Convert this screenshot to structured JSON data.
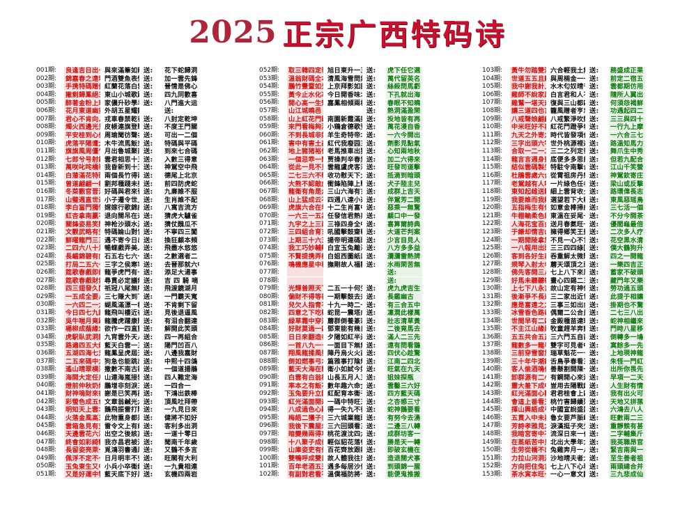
{
  "header": {
    "year": "2025",
    "title": "正宗广西特码诗"
  },
  "send_label": "送:",
  "panels": [
    {
      "rows": [
        [
          "001期:",
          "良逢吉日出十一",
          "與來滿筆如龍虎",
          "花下蛇歸洞"
        ],
        [
          "002期:",
          "錦嘉春之遠填人",
          "門酒雙魚表情書",
          "加一雲先鋒"
        ],
        [
          "003期:",
          "手携特碼贈佳人",
          "紅蘭花落白雲霄",
          "晉情是佛心"
        ],
        [
          "004期:",
          "撇剩歸鳳絕五去",
          "東山小城歌路遊",
          "四九同歡喜"
        ],
        [
          "005期:",
          "醉著金粉上玛鳳",
          "家儂升砂學羊鸡",
          "八門進大运"
        ],
        [
          "006期:",
          "花月東道幽竟主",
          "外胡五星耀籠芒",
          "送:"
        ],
        [
          "007期:",
          "君心不肯向人傾",
          "戎車春禁乾行",
          "八封定乾坤"
        ],
        [
          "008期:",
          "燭火西邊光見眠",
          "皮帳連旗登戰場",
          "不度王門關"
        ],
        [
          "009期:",
          "平安桂到心伯暗",
          "周瑜聞彷聲名伯",
          "可出一二個"
        ],
        [
          "010期:",
          "虎落平陽遭犬欺",
          "木牛流馬飯來送",
          "特碼與平碼"
        ],
        [
          "011期:",
          "旗旗風周僵乍門",
          "月出魯城聚南碼",
          "到來七合碼"
        ],
        [
          "012期:",
          "七郎兮号射錢軒",
          "雲君相思十五夜",
          "入數三得意"
        ],
        [
          "013期:",
          "萬咲叱咤橋嶺本",
          "我昏新到十五夷",
          "神駕空中飛"
        ],
        [
          "014期:",
          "白藩滿花特碼開",
          "兩個長竹得兩件",
          "德尾上北京"
        ],
        [
          "015期:",
          "曾道翩翩一棒蘭",
          "劉邦種踐未夢時",
          "前四防虎蛇"
        ],
        [
          "016期:",
          "冬菜觀官晋江流",
          "好碼與君來晉週",
          "九亷誰不服"
        ],
        [
          "017期:",
          "山璧週直世通壊",
          "小子遷令世上悪",
          "生肖誰不配"
        ],
        [
          "018期:",
          "李白當門獨竹笑",
          "嫦嫁行歌錦威國",
          "八寓吉流方"
        ],
        [
          "019期:",
          "紅杏拿南贏不平",
          "退向闊吊在逢閒",
          "猜虎大驢雀"
        ],
        [
          "020期:",
          "關鋒姿易笑開陽",
          "神枪沙頭水溫關",
          "猜仗醜瓜不"
        ],
        [
          "021期:",
          "文觀武略有生孫",
          "特碼論山對青樓",
          "不寧四三闖"
        ],
        [
          "022期:",
          "鮮曜龍門三三線",
          "遇不寄今日出特",
          "換狂顧本頻"
        ],
        [
          "023期:",
          "二四六八十足中",
          "暢蝶戲弄美人鉸",
          "飛盡水悠悠"
        ],
        [
          "024期:",
          "長嵋錦碧有向有",
          "石五右七六十中開",
          "之數選者二"
        ],
        [
          "025期:",
          "打局二五六十五",
          "三字之侯寒宰閒",
          "去晉那就六中"
        ],
        [
          "026期:",
          "筵歌春戲即綠來",
          "龍爭虎門有一萬",
          "添足大湯事"
        ],
        [
          "027期:",
          "筵歌春戲財氣風",
          "尋貫必定議無人",
          "吉 四 騎 嘀"
        ],
        [
          "028期:",
          "四三翅發久闖封",
          "祇冠八尾無所遲",
          "飛渡鏡湖月"
        ],
        [
          "029期:",
          "一五成全要八成",
          "三七赚大到下次",
          "一門霸天寬"
        ],
        [
          "030期:",
          "一六四二一九十中",
          "蝴風滿漂一棒開",
          "不肯剩下留"
        ],
        [
          "031期:",
          "今日四七九錦出",
          "龍飛叫樓近夜客",
          "見後退逼風"
        ],
        [
          "032期:",
          "吳牛喘月竟躍少",
          "龍騰虎躍康陰苑",
          "有泪合翻達"
        ],
        [
          "033期:",
          "楊柳成蔭緣求似",
          "欲作一四直靈動",
          "解開此笑頭"
        ],
        [
          "034期:",
          "虎駅臥武洞霧荷",
          "九宵雲外天八仙",
          "四一再組合"
        ],
        [
          "035期:",
          "路遍四五大紛夜",
          "藍天白雲一三曲",
          "陽門凹百八"
        ],
        [
          "036期:",
          "五湖四海七兄弟",
          "龍鳳呈虎屆天照",
          "八邊我嘉財"
        ],
        [
          "037期:",
          "二五來碼中九品",
          "狗急也能跳出幹",
          "中熙十四鴿"
        ],
        [
          "038期:",
          "遙山晴翠横滿島",
          "撒數不南古新載",
          "一個道揚鵑"
        ],
        [
          "039期:",
          "海開大定任鳥飛",
          "山連海嵐接雲游",
          "四人難定海"
        ],
        [
          "040期:",
          "燈前仲秋奶燈疾",
          "鵬增非刻淚三三",
          "一四合一"
        ],
        [
          "041期:",
          "財神嗚財來書意",
          "謝是已笑再記空",
          "下鴻出鉄棒"
        ],
        [
          "042期:",
          "彩螢色成五色靈",
          "文章翁鹹光六鐸",
          "頂風吐拜帶"
        ],
        [
          "043期:",
          "明知天上雲北飛",
          "鵝飛振雷打險兩面",
          "一九見日來"
        ],
        [
          "044期:",
          "火落金風高五酷",
          "此物重身都是寶",
          "健將不如好"
        ],
        [
          "045期:",
          "雲箱急見有支機",
          "雷令文上有紅人",
          "客利多出洞"
        ],
        [
          "046期:",
          "天邊雲花六滿涂瘴",
          "出空之後該真言",
          "一道十零日"
        ],
        [
          "047期:",
          "終會如彩綺糖寿",
          "我亦昌君被活斯",
          "聞南千年歲"
        ],
        [
          "048期:",
          "長留姿亮萊一一",
          "覓鴻羽書通風雅",
          "又鶴不多言"
        ],
        [
          "049期:",
          "佩浮不定不一一",
          "日月明丰不安兩",
          "旺閣有大利"
        ],
        [
          "050期:",
          "玉兔東生又中定",
          "小兵小卒衛絶高",
          "一九貴相連"
        ],
        [
          "051期:",
          "又是好運中特號",
          "藍天底下好風景",
          "玄機四兩岩"
        ]
      ]
    },
    {
      "rows": [
        [
          "052期:",
          "取三韓四定發財",
          "旭日東升一五開",
          "虎下任它選"
        ],
        [
          "053期:",
          "溫翁財碼全本八",
          "清風海雪問氣二八",
          "萬代留英名"
        ],
        [
          "054期:",
          "鵬竹豐暨如光表",
          "上京拜影如鵝角",
          "絲殺問馬虧"
        ],
        [
          "055期:",
          "黃今止水化冰空",
          "今日開香味北賓",
          "下孔就出海"
        ],
        [
          "056期:",
          "開心高一生知禍",
          "嘉鳳相傾兩相鄰",
          "春眠不知曉"
        ],
        [
          "057期:",
          "山江城曉邑",
          "",
          "熱洞滿盈閑"
        ],
        [
          "058期:",
          "山上紅花門路情",
          "南園新霞滿封能",
          "投地皆有再"
        ],
        [
          "059期:",
          "來門看梅夠酒閣",
          "小鶏倉德歌登聲",
          "萬花漫自香"
        ],
        [
          "060期:",
          "不到長城非好漢",
          "羊生奇特帝北寶",
          "一六今開出"
        ],
        [
          "061期:",
          "害中有害土姦王",
          "紅代我廢园三悶",
          "劑影見點氣"
        ],
        [
          "062期:",
          "地上豬猪裕何人",
          "老馬推車出猛將",
          "心知兩地秋"
        ],
        [
          "063期:",
          "一個忌乖一蘭簽",
          "贾操判辛春堡下",
          "加二六得來"
        ],
        [
          "064期:",
          "從此一見不見外",
          "雲龍盧虎客海月",
          "旺發司道擊"
        ],
        [
          "065期:",
          "二七三六不敬心",
          "收功慰天下太平",
          "抵滴到暗頭"
        ],
        [
          "066期:",
          "大熊不認敵虎跡",
          "衝鋒陷陣上戰場",
          "犬子陸主兒"
        ],
        [
          "067期:",
          "龍衛有角是六書",
          "三山六海有玄機",
          "成群上吉天"
        ],
        [
          "068期:",
          "山上猛成云不飛",
          "四週八達小週通",
          "伴駕芳二開"
        ],
        [
          "069期:",
          "虎旗六合在地支",
          "十二生肖富中定",
          "惡乘一無驚"
        ],
        [
          "070期:",
          "一六三一五為霸",
          "任發信君熱蒸覽",
          "顧口中一發"
        ],
        [
          "071期:",
          "九宇之上三兩成",
          "三祿四身全中開",
          "喜算爾詩典"
        ],
        [
          "072期:",
          "三四組合育玄機",
          "吼國擊鼓齋乾坤",
          "大道芒判案"
        ],
        [
          "073期:",
          "上期三十六五豪",
          "揚帝明連碼頭會殿",
          "少言目見人"
        ],
        [
          "074期:",
          "我工巧妙輔翹群",
          "白宜玉兔離海上",
          "八方多多益"
        ],
        [
          "075期:",
          "不賢提携弄極者",
          "白姐西圖紙口有",
          "瀰瀰雷熱牌"
        ],
        [
          "076期:",
          "鳴機應星中秋節",
          "撫剛故人福歡者",
          "水雨閑苦無"
        ],
        [
          "077期:",
          "",
          "",
          "送:"
        ],
        [
          "078期:",
          "",
          "",
          "送:"
        ],
        [
          "079期:",
          "光輝普照天下藍",
          "二五一十何生有",
          "虎九虎吉生"
        ],
        [
          "080期:",
          "偏財不得等神來",
          "一期擊鼓去升天",
          "長鑑幽古"
        ],
        [
          "081期:",
          "兒欠人指青不是本",
          "十九一時二一十",
          "有三合五中"
        ],
        [
          "082期:",
          "四意之下吃乾坤",
          "蛇昆一震塔成堆",
          "凜潤此樣萬"
        ],
        [
          "083期:",
          "緑草霜中穿淺枝",
          "蘑群倒養篆若夢",
          "壯志清草黃"
        ],
        [
          "084期:",
          "好財莫過一四七",
          "鄧東能有幾日這",
          "二後竟馬去"
        ],
        [
          "085期:",
          "日日來翻造者家",
          "夕陽如紅半邊天",
          "滿人二三先"
        ],
        [
          "086期:",
          "一首八九一十一",
          "一面目下無無興",
          "遠有問看鵲"
        ],
        [
          "087期:",
          "翔風龍揉風發雨",
          "陣丹烏火火西雲",
          "四伏心趁驚"
        ],
        [
          "088期:",
          "倒如燃事弓木五",
          "篇雅事打陰燒兩",
          "江南二四北"
        ],
        [
          "089期:",
          "藍天大海在粗濤",
          "衛小如試今好運",
          "旺氣在九天"
        ],
        [
          "090期:",
          "白雲有白翁相稀",
          "山長五月人五洲",
          "姐妹探瓶"
        ],
        [
          "091期:",
          "率本之有飯不充",
          "數年趣六命全觀",
          "雲鑿三六好"
        ],
        [
          "092期:",
          "玉兔要升立國閣",
          "紅配育本衛子賞",
          "四方藍天碼"
        ],
        [
          "093期:",
          "紅光滿面開運來",
          "一碼中特旺五門",
          "之杏感三寸"
        ],
        [
          "094期:",
          "八成過色心聽定",
          "得一失九不後悔",
          "蛇神鵝要看"
        ],
        [
          "095期:",
          "梅語二獲子亦來",
          "三六城業龍頭戰",
          "有努今去湧"
        ],
        [
          "096期:",
          "我後下震屋未門",
          "三六回頭看三六",
          "二邊三八轉"
        ],
        [
          "097期:",
          "暗變幾兩得功圓",
          "桃花渡沈四六五",
          "成群坊客一"
        ],
        [
          "098期:",
          "十八聚子成佳人",
          "輕似貂花落餐吹",
          "勝是天一轉"
        ],
        [
          "099期:",
          "山庫姿吏有傻鶴",
          "百花齊放跟新春",
          "即破玄機在"
        ],
        [
          "100期:",
          "雙鴨呼成雙日",
          "故人體我往來道",
          "造退闊犬事"
        ],
        [
          "101期:",
          "百年老酒五天",
          "遇多每居沙便中",
          "到頭錦一腥"
        ],
        [
          "102期:",
          "有副對君看不一",
          "溫僕福防將一件",
          "能便鬼推搬"
        ]
      ]
    },
    {
      "rows": [
        [
          "103期:",
          "黃牛勿踏雙溪坡",
          "六合輕我土無",
          "送:",
          "務盛成正果"
        ],
        [
          "104期:",
          "世道五五且離別",
          "與周楠金一一飲",
          "送:",
          "前定二宿五"
        ],
        [
          "105期:",
          "我中謝我計上路",
          "水木匂奴晴千秋",
          "送:",
          "雲都期仿用"
        ],
        [
          "106期:",
          "雞師不說家鳳鎖",
          "白言君和人不平",
          "送:",
          "隨所人翼出"
        ],
        [
          "107期:",
          "雞鷲一堪天遠贏",
          "復與三山都四集",
          "送:",
          "何須怨褐鮮"
        ],
        [
          "108期:",
          "讓三道四也言中",
          "籠風贈者亨忠故",
          "送:",
          "功遇起四二"
        ],
        [
          "109期:",
          "八戒聲娘翩翩蓋",
          "八戒繁淨吹鼓",
          "送:",
          "三三與四十"
        ],
        [
          "110期:",
          "中米旺好不再芬",
          "紅花門蹬爭春色",
          "送:",
          "一行九上摩"
        ],
        [
          "111期:",
          "九天之外寄九天",
          "時代皆發項代人",
          "送:",
          "一六合三七"
        ],
        [
          "112期:",
          "三字出頭六字驛",
          "世外桃源裡避暑",
          "送:",
          "路溫知馬力"
        ],
        [
          "113期:",
          "合取一二一二五",
          "三二之列定發任",
          "送:",
          "舞爪生中秀"
        ],
        [
          "114期:",
          "龍言言週身晝黑",
          "底便多多思計可施",
          "送:",
          "但若九配合"
        ],
        [
          "115期:",
          "結似雲碼製生原",
          "特駐令南撃合時",
          "送:",
          "江山千笑營"
        ],
        [
          "116期:",
          "杜鵑雲處六合雪",
          "從霄祖房丹樂江東",
          "送:",
          "神駕欽寄庄"
        ],
        [
          "117期:",
          "老駕越有人呱打",
          "一片綠色任者御",
          "送:",
          "梁山或反撃"
        ],
        [
          "118期:",
          "東知起雌送騎擦",
          "細上雲背收夕雲",
          "送:",
          "路環偉長志"
        ],
        [
          "119期:",
          "我要誰而我龍馳",
          "選望若下大乾虎",
          "送:",
          "東風惡瑶鳥"
        ],
        [
          "120期:",
          "五指梅生有仙晉",
          "如意金棒掃威風",
          "送:",
          "三七活一個"
        ],
        [
          "121期:",
          "牛棚輸柔色射魚",
          "東溫在妥尾一天",
          "送:",
          "不分今開茶"
        ],
        [
          "122期:",
          "人海花宝百金魚",
          "送月春氨旺一晉",
          "送:",
          "優閻龜最倍"
        ],
        [
          "123期:",
          "于謙却情吉山上",
          "擁得鄉笑王畫一",
          "送:",
          "二次多人疗"
        ],
        [
          "124期:",
          "一期開陵拿加拿",
          "不見一心不甘",
          "送:",
          "花空黑水清"
        ],
        [
          "125期:",
          "一八報用出頭岳",
          "三三四四綠回頭",
          "送:",
          "僕大鶴狗升"
        ],
        [
          "126期:",
          "客到各好生再等",
          "吞重解太微陰商",
          "送:",
          "四之一開龍"
        ],
        [
          "127期:",
          "規琴入射太老素",
          "蘑天頌頂之頭日",
          "送:",
          "一樂四吉正"
        ],
        [
          "128期:",
          "佛先客開三八中",
          "七上八下來風時",
          "送:",
          "蓄家不破頭"
        ],
        [
          "129期:",
          "好馬未聽聽帶婁",
          "畫心四錫二五獸",
          "送:",
          "藏門年又樂"
        ],
        [
          "130期:",
          "上七下八永言聊",
          "故山定有神仙酒",
          "送:",
          "勞功過五頭"
        ],
        [
          "131期:",
          "後漸爭不長道",
          "三二家出近世事",
          "送:",
          "此提于相讓"
        ],
        [
          "132期:",
          "應是富遠之之年",
          "三事三如出或可看",
          "送:",
          "掛期也不驚"
        ],
        [
          "133期:",
          "冰雪香色路裁",
          "偶爾二公合員一",
          "送:",
          "二七三八出"
        ],
        [
          "134期:",
          "世間早有二四中",
          "金殿種苗達瑞端",
          "送:",
          "蛇神相繼來"
        ],
        [
          "135期:",
          "不主江山緣與藍",
          "牧童趕羊奔藍天",
          "送:",
          "門時八星移"
        ],
        [
          "136期:",
          "五五共合五正天",
          "三六門五自西角",
          "送:",
          "倒轉多一鳩"
        ],
        [
          "137期:",
          "龍數多一龍半碼",
          "雙字可見者中彩",
          "送:",
          "寞餘多一先"
        ],
        [
          "138期:",
          "三前穿雪窗加嘉",
          "瑞草魁花一十五",
          "送:",
          "上地現神龍"
        ],
        [
          "139期:",
          "三十年牛潮銀雪",
          "舌鳥爭春看三現",
          "送:",
          "朱怪一門紅"
        ],
        [
          "140期:",
          "客人偷酒鳴使鎖",
          "善懸割開陳一源",
          "送:",
          "出所你畏先"
        ],
        [
          "141期:",
          "卸群源有二小旺雪",
          "有鋼開心來連禍",
          "送:",
          "早項一二天"
        ],
        [
          "142期:",
          "靈大羞下成中辦鬢",
          "豈用去陽戰起運",
          "送:",
          "人生財有情"
        ],
        [
          "143期:",
          "紅光滿面心歡喜",
          "君君桂會上四平",
          "送:",
          "我有出火可"
        ],
        [
          "144期:",
          "會這上番看玉兔",
          "桃竹害歸績殘鳳",
          "送:",
          "天地又拼蓀"
        ],
        [
          "145期:",
          "揮山興語成弓箭",
          "中國宣說盛厲吉",
          "送:",
          "六鴻去八人"
        ],
        [
          "146期:",
          "五貫入中未再言",
          "魯女要芦脈峻嗓",
          "送:",
          "旺數兩二三"
        ],
        [
          "147期:",
          "芳詩孝雅見九流",
          "淚漢挺子夾欠遂",
          "送:",
          "重靜競有甚"
        ],
        [
          "148期:",
          "我暗宮寄中不回",
          "流深日來一仆期",
          "送:",
          "二字輔集斤"
        ],
        [
          "149期:",
          "在蒸紙苦中見来",
          "北出大學年尤美",
          "送:",
          "我英職昂官"
        ],
        [
          "150期:",
          "生劳從橋不出迎",
          "兔雞奔月一八現",
          "送:",
          "緊吉南與一"
        ],
        [
          "151期:",
          "力拉山河洞湧通",
          "沙地晴夫者太山",
          "送:",
          "至生善者祖"
        ],
        [
          "152期:",
          "方向把住兔言拜",
          "七上八下心和通",
          "送:",
          "兩頭總合并"
        ],
        [
          "153期:",
          "茶水寅本旺一人",
          "一心一意文翻攻",
          "送:",
          "三九悲成仙"
        ]
      ]
    }
  ]
}
